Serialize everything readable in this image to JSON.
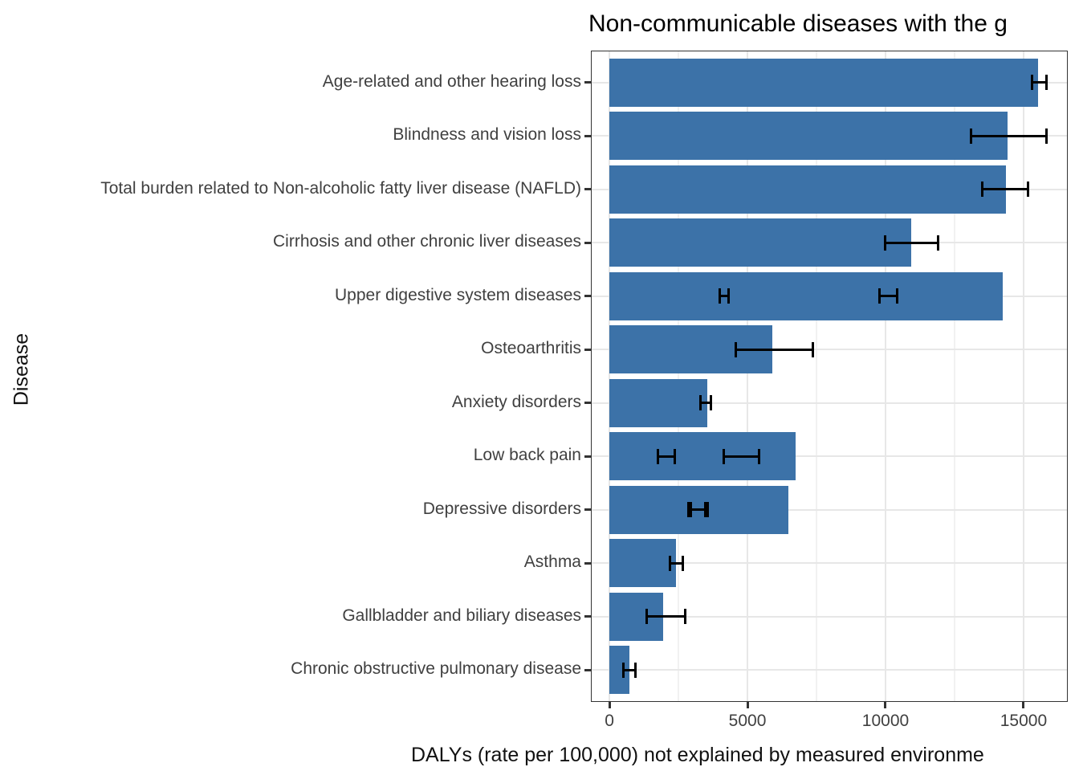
{
  "chart_data": {
    "type": "bar",
    "orientation": "horizontal",
    "title": "Non-communicable diseases with the g",
    "xlabel": "DALYs (rate per 100,000) not explained by measured environme",
    "ylabel": "Disease",
    "bar_color": "#3c72a8",
    "error_bar_color": "#000000",
    "grid": true,
    "legend": false,
    "categories": [
      "Age-related and other hearing loss",
      "Blindness and vision loss",
      "Total burden related to Non-alcoholic fatty liver disease (NAFLD)",
      "Cirrhosis and other chronic liver diseases",
      "Upper digestive system diseases",
      "Osteoarthritis",
      "Anxiety disorders",
      "Low back pain",
      "Depressive disorders",
      "Asthma",
      "Gallbladder and biliary diseases",
      "Chronic obstructive pulmonary disease"
    ],
    "values": [
      15520,
      14420,
      14360,
      10930,
      14250,
      5900,
      3550,
      6740,
      6480,
      2410,
      1950,
      730
    ],
    "error_bars": [
      [
        [
          15320,
          15820
        ]
      ],
      [
        [
          13110,
          15820
        ]
      ],
      [
        [
          13490,
          15150
        ]
      ],
      [
        [
          10000,
          11890
        ]
      ],
      [
        [
          4010,
          4310
        ],
        [
          9770,
          10410
        ]
      ],
      [
        [
          4590,
          7380
        ]
      ],
      [
        [
          3290,
          3690
        ]
      ],
      [
        [
          1770,
          2360
        ],
        [
          4130,
          5410
        ]
      ],
      [
        [
          2850,
          3550
        ],
        [
          2960,
          3470
        ]
      ],
      [
        [
          2180,
          2670
        ]
      ],
      [
        [
          1340,
          2760
        ]
      ],
      [
        [
          520,
          930
        ]
      ]
    ],
    "xlim": [
      -670,
      16600
    ],
    "xticks": [
      0,
      5000,
      10000,
      15000
    ],
    "xtick_labels": [
      "0",
      "5000",
      "10000",
      "15000"
    ],
    "minor_xticks": [
      2500,
      7500,
      12500
    ]
  }
}
